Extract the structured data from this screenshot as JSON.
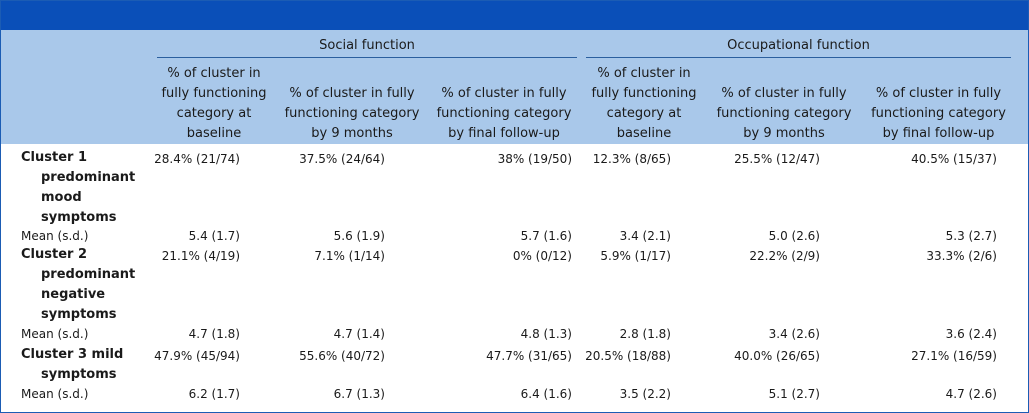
{
  "table": {
    "groups": [
      {
        "label": "Social function"
      },
      {
        "label": "Occupational function"
      }
    ],
    "columns": [
      {
        "lines": [
          "% of cluster in",
          "fully functioning",
          "category at",
          "baseline"
        ]
      },
      {
        "lines": [
          "% of cluster in fully",
          "functioning category",
          "by 9 months"
        ]
      },
      {
        "lines": [
          "% of cluster in fully",
          "functioning category",
          "by final follow-up"
        ]
      },
      {
        "lines": [
          "% of cluster in",
          "fully functioning",
          "category at",
          "baseline"
        ]
      },
      {
        "lines": [
          "% of cluster in fully",
          "functioning category",
          "by 9 months"
        ]
      },
      {
        "lines": [
          "% of cluster in fully",
          "functioning category",
          "by final follow-up"
        ]
      }
    ],
    "clusters": [
      {
        "label_lines": [
          "Cluster 1",
          "predominant",
          "mood",
          "symptoms"
        ],
        "values": [
          "28.4% (21/74)",
          "37.5% (24/64)",
          "38% (19/50)",
          "12.3% (8/65)",
          "25.5% (12/47)",
          "40.5% (15/37)"
        ],
        "mean_label": "Mean (s.d.)",
        "means": [
          "5.4 (1.7)",
          "5.6 (1.9)",
          "5.7 (1.6)",
          "3.4 (2.1)",
          "5.0 (2.6)",
          "5.3 (2.7)"
        ]
      },
      {
        "label_lines": [
          "Cluster 2",
          "predominant",
          "negative",
          "symptoms"
        ],
        "values": [
          "21.1% (4/19)",
          "7.1% (1/14)",
          "0% (0/12)",
          "5.9% (1/17)",
          "22.2% (2/9)",
          "33.3% (2/6)"
        ],
        "mean_label": "Mean (s.d.)",
        "means": [
          "4.7 (1.8)",
          "4.7 (1.4)",
          "4.8 (1.3)",
          "2.8 (1.8)",
          "3.4 (2.6)",
          "3.6 (2.4)"
        ]
      },
      {
        "label_lines": [
          "Cluster 3 mild",
          "symptoms"
        ],
        "values": [
          "47.9% (45/94)",
          "55.6% (40/72)",
          "47.7% (31/65)",
          "20.5% (18/88)",
          "40.0% (26/65)",
          "27.1% (16/59)"
        ],
        "mean_label": "Mean (s.d.)",
        "means": [
          "6.2 (1.7)",
          "6.7 (1.3)",
          "6.4 (1.6)",
          "3.5 (2.2)",
          "5.1 (2.7)",
          "4.7 (2.6)"
        ]
      }
    ]
  }
}
